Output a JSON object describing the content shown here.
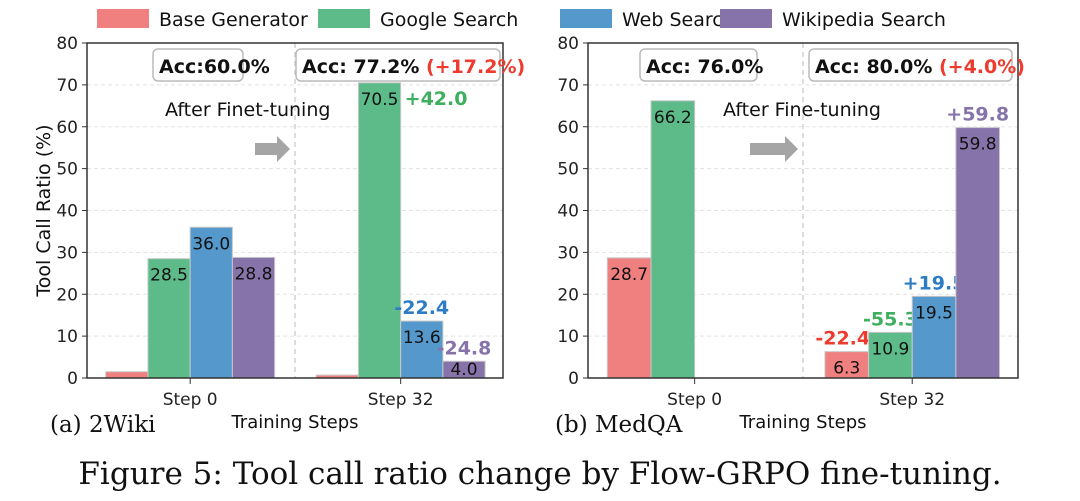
{
  "legend": [
    {
      "name": "Base Generator",
      "color": "#F08080"
    },
    {
      "name": "Google Search",
      "color": "#5DBB8A"
    },
    {
      "name": "Web Search",
      "color": "#5599CC"
    },
    {
      "name": "Wikipedia Search",
      "color": "#8673A9"
    }
  ],
  "caption": "Figure 5: Tool call ratio change by Flow-GRPO fine-tuning.",
  "chart_data": [
    {
      "type": "bar",
      "subtitle": "(a) 2Wiki",
      "xlabel": "Training Steps",
      "ylabel": "Tool Call Ratio (%)",
      "ylim": [
        0,
        80
      ],
      "yticks": [
        0,
        10,
        20,
        30,
        40,
        50,
        60,
        70,
        80
      ],
      "categories": [
        "Step 0",
        "Step 32"
      ],
      "series": [
        {
          "name": "Base Generator",
          "values": [
            1.5,
            0.7
          ],
          "labels": [
            null,
            null
          ],
          "deltas": [
            null,
            null
          ]
        },
        {
          "name": "Google Search",
          "values": [
            28.5,
            70.5
          ],
          "labels": [
            "28.5",
            "70.5"
          ],
          "deltas": [
            null,
            "+42.0"
          ]
        },
        {
          "name": "Web Search",
          "values": [
            36.0,
            13.6
          ],
          "labels": [
            "36.0",
            "13.6"
          ],
          "deltas": [
            null,
            "-22.4"
          ]
        },
        {
          "name": "Wikipedia Search",
          "values": [
            28.8,
            4.0
          ],
          "labels": [
            "28.8",
            "4.0"
          ],
          "deltas": [
            null,
            "-24.8"
          ]
        }
      ],
      "accuracy": [
        {
          "text": "Acc:60.0%",
          "delta": ""
        },
        {
          "text": "Acc: 77.2%",
          "delta": "(+17.2%)"
        }
      ],
      "annotation": "After Finet-tuning",
      "grid": true
    },
    {
      "type": "bar",
      "subtitle": "(b) MedQA",
      "xlabel": "Training Steps",
      "ylabel": "",
      "ylim": [
        0,
        80
      ],
      "yticks": [
        0,
        10,
        20,
        30,
        40,
        50,
        60,
        70,
        80
      ],
      "categories": [
        "Step 0",
        "Step 32"
      ],
      "series": [
        {
          "name": "Base Generator",
          "values": [
            28.7,
            6.3
          ],
          "labels": [
            "28.7",
            "6.3"
          ],
          "deltas": [
            null,
            "-22.4"
          ]
        },
        {
          "name": "Google Search",
          "values": [
            66.2,
            10.9
          ],
          "labels": [
            "66.2",
            "10.9"
          ],
          "deltas": [
            null,
            "-55.3"
          ]
        },
        {
          "name": "Web Search",
          "values": [
            0,
            19.5
          ],
          "labels": [
            null,
            "19.5"
          ],
          "deltas": [
            null,
            "+19.5"
          ]
        },
        {
          "name": "Wikipedia Search",
          "values": [
            0,
            59.8
          ],
          "labels": [
            null,
            "59.8"
          ],
          "deltas": [
            null,
            "+59.8"
          ]
        }
      ],
      "accuracy": [
        {
          "text": "Acc: 76.0%",
          "delta": ""
        },
        {
          "text": "Acc: 80.0%",
          "delta": "(+4.0%)"
        }
      ],
      "annotation": "After Fine-tuning",
      "grid": true
    }
  ]
}
